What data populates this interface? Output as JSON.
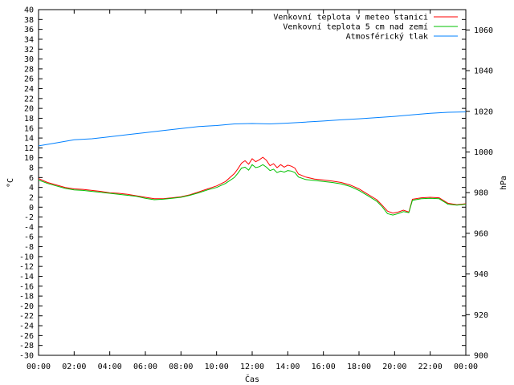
{
  "chart_data": {
    "type": "line",
    "x_ticks": [
      "00:00",
      "02:00",
      "04:00",
      "06:00",
      "08:00",
      "10:00",
      "12:00",
      "14:00",
      "16:00",
      "18:00",
      "20:00",
      "22:00",
      "00:00"
    ],
    "xlim": [
      0,
      24
    ],
    "xlabel": "Čas",
    "ylabel_left": "°C",
    "ylabel_right": "hPa",
    "ylim_left": [
      -30,
      40
    ],
    "ylim_right": [
      900,
      1070
    ],
    "y_left_ticks": [
      40,
      38,
      36,
      34,
      32,
      30,
      28,
      26,
      24,
      22,
      20,
      18,
      16,
      14,
      12,
      10,
      8,
      6,
      4,
      2,
      0,
      -2,
      -4,
      -6,
      -8,
      -10,
      -12,
      -14,
      -16,
      -18,
      -20,
      -22,
      -24,
      -26,
      -28,
      -30
    ],
    "y_right_ticks": [
      1060,
      1040,
      1020,
      1000,
      980,
      960,
      940,
      920,
      900
    ],
    "grid": false,
    "legend_position": "top-right",
    "series": [
      {
        "name": "Venkovní teplota v meteo stanici",
        "color": "#ff0000",
        "axis": "left",
        "x": [
          0,
          0.5,
          1,
          1.5,
          2,
          2.5,
          3,
          3.5,
          4,
          4.5,
          5,
          5.5,
          6,
          6.5,
          7,
          7.5,
          8,
          8.5,
          9,
          9.5,
          10,
          10.5,
          11,
          11.2,
          11.4,
          11.6,
          11.8,
          12,
          12.2,
          12.4,
          12.6,
          12.8,
          13,
          13.2,
          13.4,
          13.6,
          13.8,
          14,
          14.2,
          14.4,
          14.6,
          15,
          15.5,
          16,
          16.5,
          17,
          17.5,
          18,
          18.5,
          19,
          19.3,
          19.6,
          19.9,
          20.2,
          20.5,
          20.8,
          21,
          21.5,
          22,
          22.5,
          23,
          23.5,
          24
        ],
        "values": [
          5.8,
          5.0,
          4.5,
          4.0,
          3.7,
          3.6,
          3.4,
          3.2,
          2.9,
          2.8,
          2.6,
          2.3,
          2.0,
          1.7,
          1.7,
          1.9,
          2.1,
          2.5,
          3.1,
          3.7,
          4.3,
          5.2,
          6.8,
          7.8,
          8.9,
          9.4,
          8.7,
          9.8,
          9.2,
          9.6,
          10.1,
          9.5,
          8.4,
          8.8,
          8.0,
          8.6,
          8.1,
          8.5,
          8.3,
          7.9,
          6.7,
          6.1,
          5.7,
          5.5,
          5.3,
          5.0,
          4.5,
          3.7,
          2.6,
          1.5,
          0.4,
          -0.8,
          -1.2,
          -1.0,
          -0.6,
          -1.0,
          1.6,
          1.9,
          2.0,
          1.9,
          0.8,
          0.5,
          0.7
        ]
      },
      {
        "name": "Venkovní teplota 5 cm nad zemí",
        "color": "#00c000",
        "axis": "left",
        "x": [
          0,
          0.5,
          1,
          1.5,
          2,
          2.5,
          3,
          3.5,
          4,
          4.5,
          5,
          5.5,
          6,
          6.5,
          7,
          7.5,
          8,
          8.5,
          9,
          9.5,
          10,
          10.5,
          11,
          11.2,
          11.4,
          11.6,
          11.8,
          12,
          12.2,
          12.4,
          12.6,
          12.8,
          13,
          13.2,
          13.4,
          13.6,
          13.8,
          14,
          14.2,
          14.4,
          14.6,
          15,
          15.5,
          16,
          16.5,
          17,
          17.5,
          18,
          18.5,
          19,
          19.3,
          19.6,
          19.9,
          20.2,
          20.5,
          20.8,
          21,
          21.5,
          22,
          22.5,
          23,
          23.5,
          24
        ],
        "values": [
          5.5,
          4.8,
          4.3,
          3.8,
          3.5,
          3.4,
          3.2,
          3.0,
          2.8,
          2.6,
          2.4,
          2.2,
          1.8,
          1.5,
          1.6,
          1.8,
          2.0,
          2.4,
          2.9,
          3.5,
          4.0,
          4.8,
          6.0,
          6.9,
          7.9,
          8.1,
          7.5,
          8.6,
          8.0,
          8.2,
          8.6,
          8.1,
          7.4,
          7.7,
          7.0,
          7.3,
          7.1,
          7.4,
          7.3,
          7.0,
          6.1,
          5.6,
          5.4,
          5.2,
          5.0,
          4.7,
          4.2,
          3.4,
          2.3,
          1.2,
          0.1,
          -1.3,
          -1.6,
          -1.3,
          -0.9,
          -1.1,
          1.4,
          1.7,
          1.8,
          1.7,
          0.6,
          0.4,
          0.6
        ]
      },
      {
        "name": "Atmosférický tlak",
        "color": "#0080ff",
        "axis": "right",
        "x": [
          0,
          1,
          2,
          3,
          4,
          5,
          6,
          7,
          8,
          9,
          10,
          11,
          12,
          13,
          14,
          15,
          16,
          17,
          18,
          19,
          20,
          21,
          22,
          23,
          24
        ],
        "values": [
          1003,
          1004.5,
          1006,
          1006.5,
          1007.5,
          1008.5,
          1009.5,
          1010.5,
          1011.5,
          1012.5,
          1013,
          1013.8,
          1014,
          1013.8,
          1014.2,
          1014.7,
          1015.2,
          1015.8,
          1016.3,
          1016.9,
          1017.5,
          1018.3,
          1019,
          1019.5,
          1019.7
        ]
      }
    ]
  }
}
